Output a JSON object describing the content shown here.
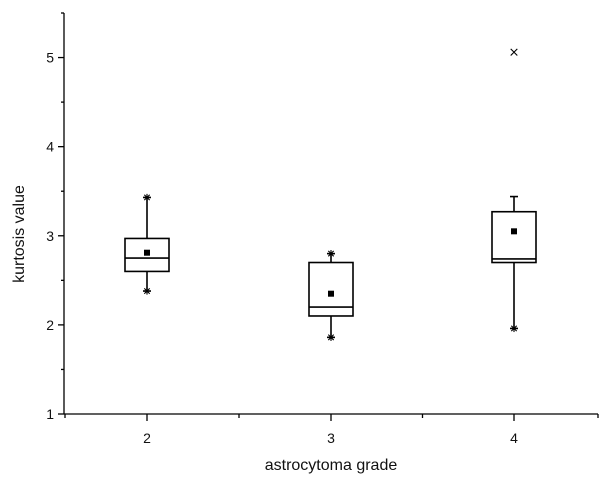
{
  "chart_data": {
    "type": "box",
    "title": "",
    "xlabel": "astrocytoma grade",
    "ylabel": "kurtosis value",
    "ylim": [
      1,
      5.5
    ],
    "yticks": [
      1,
      2,
      3,
      4,
      5
    ],
    "grid": false,
    "categories": [
      "2",
      "3",
      "4"
    ],
    "boxes": [
      {
        "category": "2",
        "whisker_low": 2.38,
        "q1": 2.6,
        "median": 2.75,
        "q3": 2.97,
        "whisker_high": 3.43,
        "mean": 2.81,
        "extremes": [
          2.38,
          3.43
        ],
        "outliers": []
      },
      {
        "category": "3",
        "whisker_low": 1.86,
        "q1": 2.1,
        "median": 2.2,
        "q3": 2.7,
        "whisker_high": 2.8,
        "mean": 2.35,
        "extremes": [
          1.86,
          2.8
        ],
        "outliers": []
      },
      {
        "category": "4",
        "whisker_low": 1.96,
        "q1": 2.7,
        "median": 2.74,
        "q3": 3.27,
        "whisker_high": 3.44,
        "mean": 3.05,
        "extremes": [
          1.96
        ],
        "outliers": [
          5.06
        ]
      }
    ]
  }
}
